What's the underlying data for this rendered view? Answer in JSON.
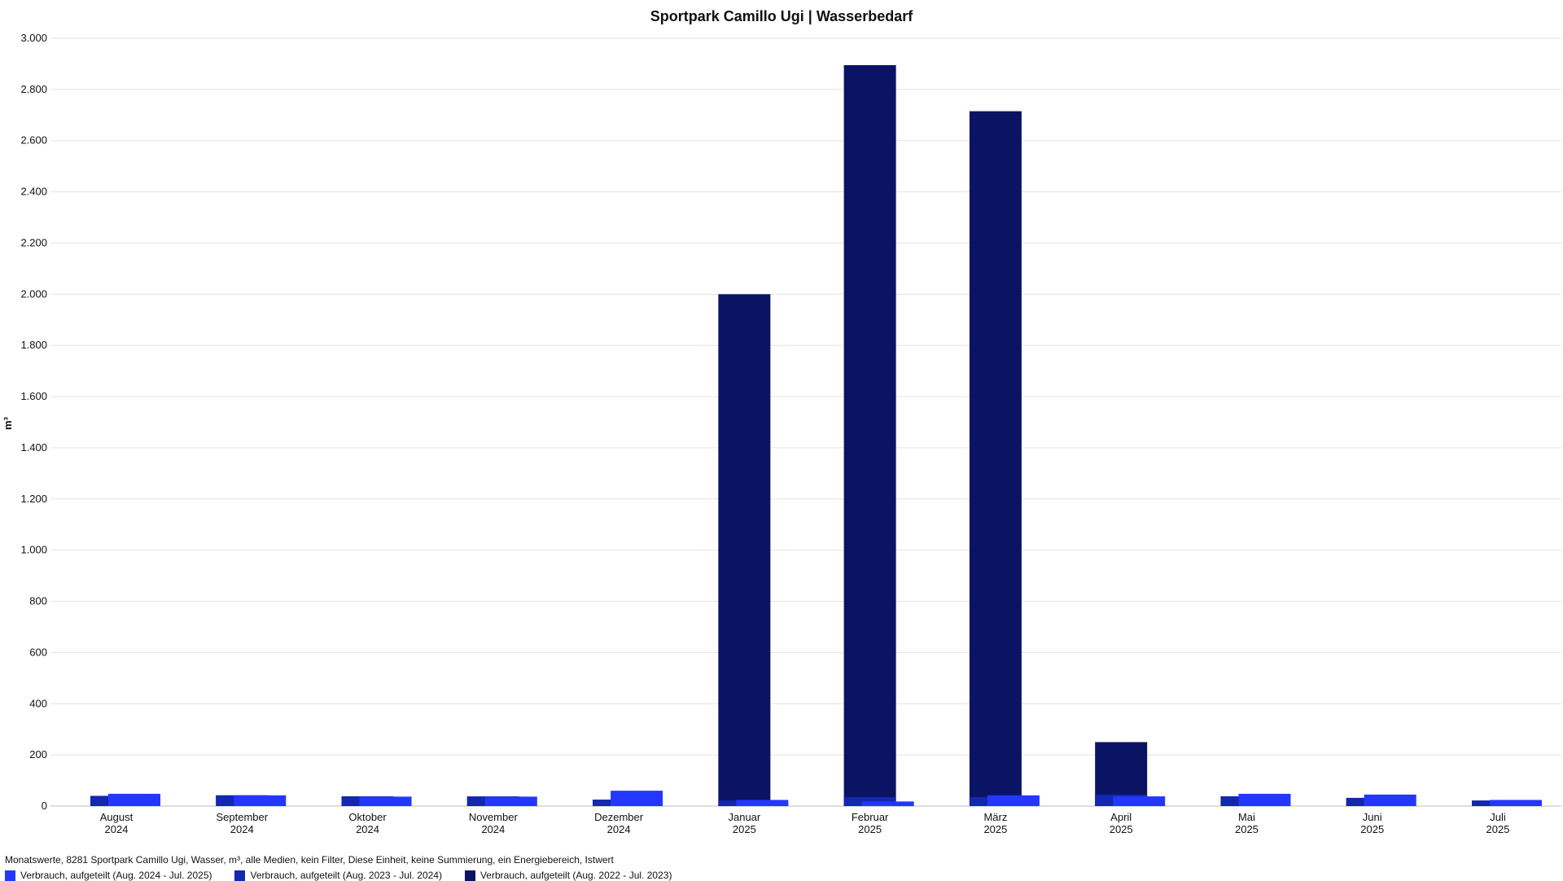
{
  "chart_data": {
    "type": "bar",
    "title": "Sportpark Camillo Ugi | Wasserbedarf",
    "subtitle": "Monatswerte, 8281 Sportpark Camillo Ugi, Wasser, m³, alle Medien, kein Filter, Diese Einheit, keine Summierung, ein Energiebereich, Istwert",
    "ylabel": "m³",
    "xlabel": "",
    "ylim": [
      0,
      3000
    ],
    "yticks": [
      0,
      200,
      400,
      600,
      800,
      1000,
      1200,
      1400,
      1600,
      1800,
      2000,
      2200,
      2400,
      2600,
      2800,
      3000
    ],
    "ytick_labels": [
      "0",
      "200",
      "400",
      "600",
      "800",
      "1.000",
      "1.200",
      "1.400",
      "1.600",
      "1.800",
      "2.000",
      "2.200",
      "2.400",
      "2.600",
      "2.800",
      "3.000"
    ],
    "grid": true,
    "legend_position": "bottom-left",
    "categories": [
      {
        "month": "August",
        "year": "2024"
      },
      {
        "month": "September",
        "year": "2024"
      },
      {
        "month": "Oktober",
        "year": "2024"
      },
      {
        "month": "November",
        "year": "2024"
      },
      {
        "month": "Dezember",
        "year": "2024"
      },
      {
        "month": "Januar",
        "year": "2025"
      },
      {
        "month": "Februar",
        "year": "2025"
      },
      {
        "month": "März",
        "year": "2025"
      },
      {
        "month": "April",
        "year": "2025"
      },
      {
        "month": "Mai",
        "year": "2025"
      },
      {
        "month": "Juni",
        "year": "2025"
      },
      {
        "month": "Juli",
        "year": "2025"
      }
    ],
    "series": [
      {
        "name": "Verbrauch, aufgeteilt (Aug. 2022 - Jul. 2023)",
        "color": "#0b1464",
        "values": [
          30,
          42,
          38,
          36,
          25,
          2000,
          2895,
          2715,
          250,
          38,
          32,
          20
        ]
      },
      {
        "name": "Verbrauch, aufgeteilt (Aug. 2023 - Jul. 2024)",
        "color": "#1327b0",
        "values": [
          40,
          42,
          38,
          38,
          25,
          22,
          35,
          35,
          45,
          38,
          32,
          22
        ]
      },
      {
        "name": "Verbrauch, aufgeteilt (Aug. 2024 - Jul. 2025)",
        "color": "#2437ff",
        "values": [
          48,
          42,
          37,
          37,
          60,
          24,
          18,
          42,
          38,
          48,
          45,
          24
        ]
      }
    ],
    "legend_order": [
      2,
      1,
      0
    ]
  }
}
